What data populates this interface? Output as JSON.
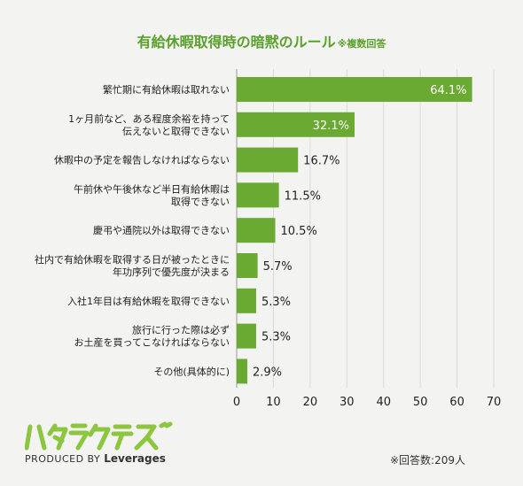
{
  "header": {
    "title": "有給休暇取得時の暗黙のルール",
    "note": "※複数回答"
  },
  "chart_data": {
    "type": "bar",
    "orientation": "horizontal",
    "categories": [
      [
        "繁忙期に有給休暇は取れない"
      ],
      [
        "1ヶ月前など、ある程度余裕を持って",
        "伝えないと取得できない"
      ],
      [
        "休暇中の予定を報告しなければならない"
      ],
      [
        "午前休や午後休など半日有給休暇は",
        "取得できない"
      ],
      [
        "慶弔や通院以外は取得できない"
      ],
      [
        "社内で有給休暇を取得する日が被ったときに",
        "年功序列で優先度が決まる"
      ],
      [
        "入社1年目は有給休暇を取得できない"
      ],
      [
        "旅行に行った際は必ず",
        "お土産を買ってこなければならない"
      ],
      [
        "その他(具体的に)"
      ]
    ],
    "values": [
      64.1,
      32.1,
      16.7,
      11.5,
      10.5,
      5.7,
      5.3,
      5.3,
      2.9
    ],
    "value_labels": [
      "64.1%",
      "32.1%",
      "16.7%",
      "11.5%",
      "10.5%",
      "5.7%",
      "5.3%",
      "5.3%",
      "2.9%"
    ],
    "xlim": [
      0,
      70
    ],
    "xticks": [
      0,
      10,
      20,
      30,
      40,
      50,
      60,
      70
    ],
    "xtick_labels": [
      "0",
      "10",
      "20",
      "30",
      "40",
      "50",
      "60",
      "70"
    ],
    "grid": true,
    "bar_color": "#6aaa33",
    "grid_color": "#d8d8d8"
  },
  "branding": {
    "logo_text": "ハタラクティブ",
    "produced_by": "PRODUCED BY",
    "company": "Leverages",
    "logo_color": "#8cc63f"
  },
  "footnote": "※回答数:209人"
}
